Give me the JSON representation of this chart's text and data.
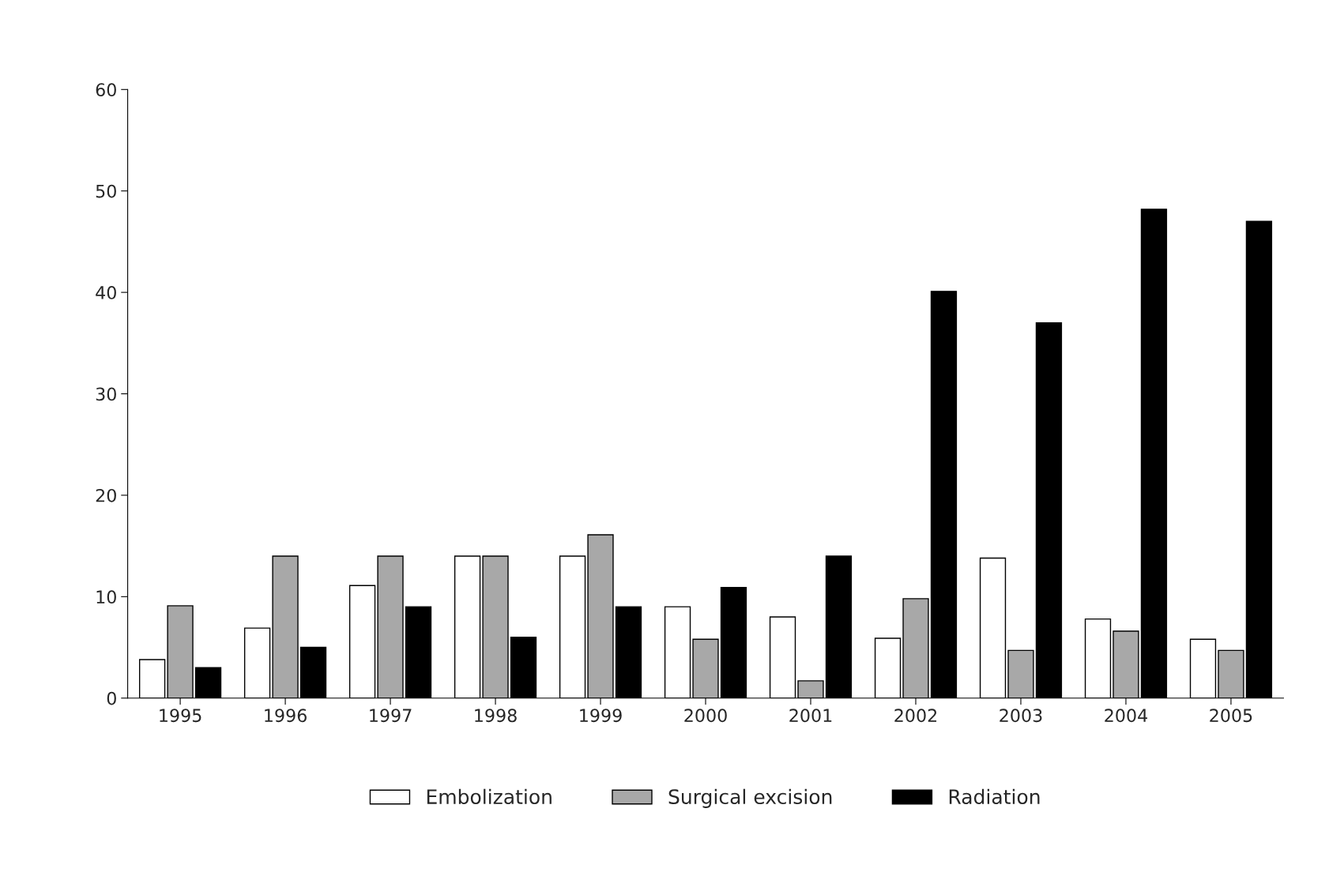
{
  "chart_data": {
    "type": "bar",
    "categories": [
      "1995",
      "1996",
      "1997",
      "1998",
      "1999",
      "2000",
      "2001",
      "2002",
      "2003",
      "2004",
      "2005"
    ],
    "series": [
      {
        "name": "Embolization",
        "color": "#ffffff",
        "values": [
          3.8,
          6.9,
          11.1,
          14,
          14,
          9,
          8,
          5.9,
          13.8,
          7.8,
          5.8
        ]
      },
      {
        "name": "Surgical excision",
        "color": "#a8a8a8",
        "values": [
          9.1,
          14,
          14,
          14,
          16.1,
          5.8,
          1.7,
          9.8,
          4.7,
          6.6,
          4.7
        ]
      },
      {
        "name": "Radiation",
        "color": "#000000",
        "values": [
          3,
          5,
          9,
          6,
          9,
          10.9,
          14,
          40.1,
          37,
          48.2,
          47
        ]
      }
    ],
    "ylim": [
      0,
      60
    ],
    "yticks": [
      0,
      10,
      20,
      30,
      40,
      50,
      60
    ],
    "grid": false,
    "legend": "bottom"
  }
}
